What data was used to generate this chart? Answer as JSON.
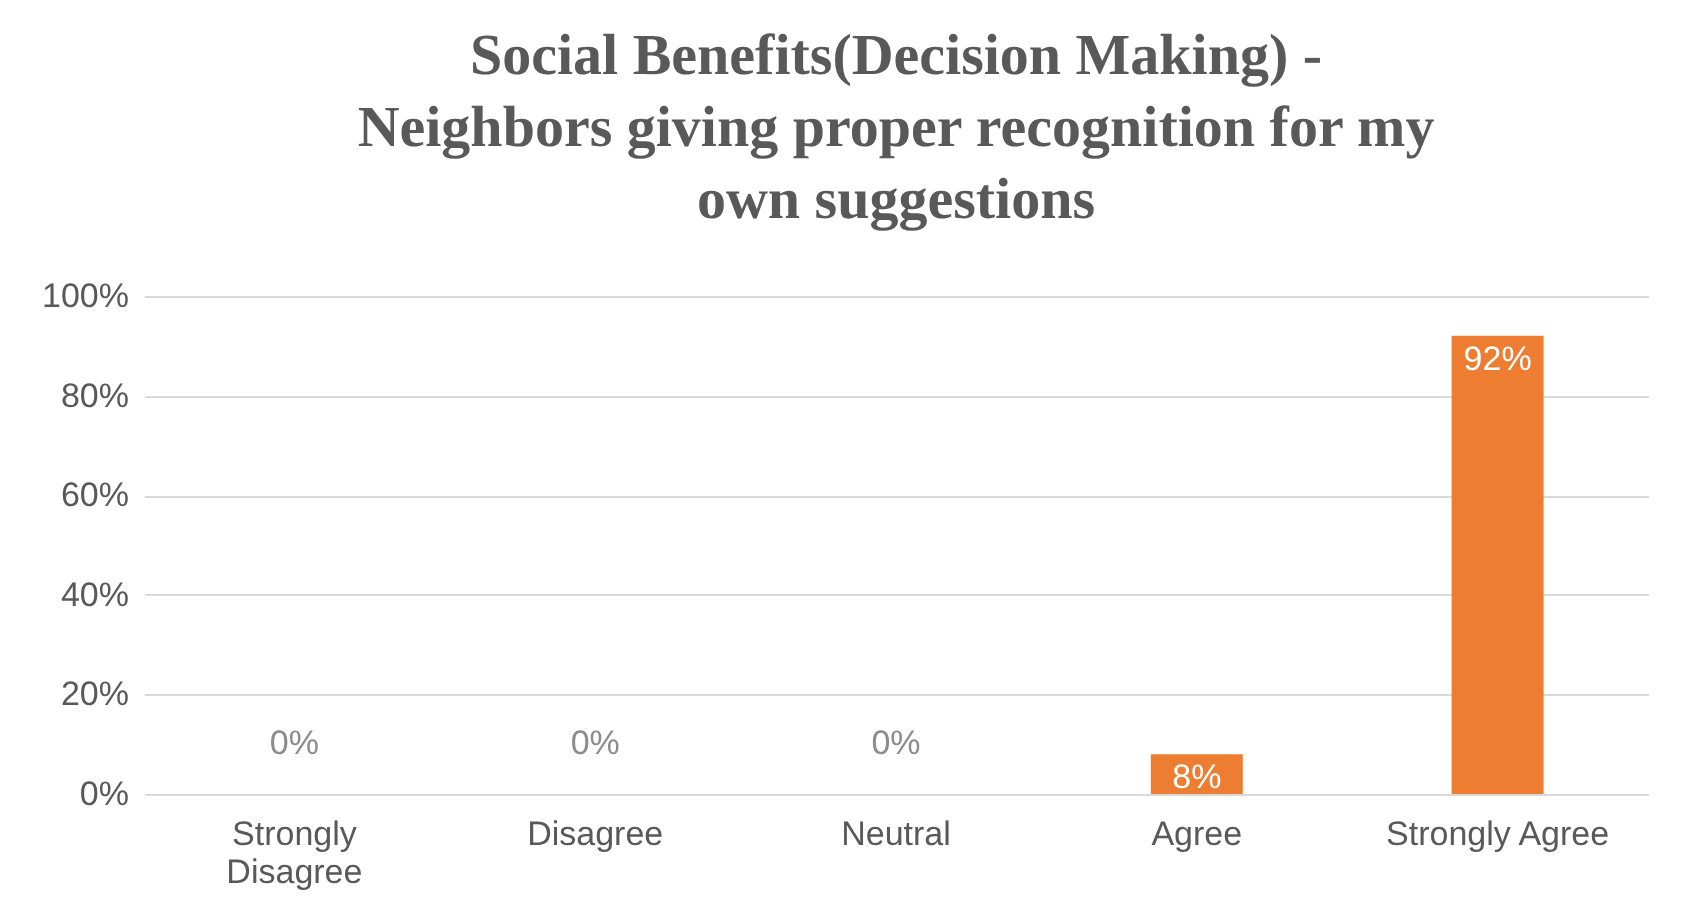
{
  "chart_data": {
    "type": "bar",
    "title": "Social Benefits(Decision Making) - Neighbors giving proper recognition for my own suggestions",
    "categories": [
      "Strongly Disagree",
      "Disagree",
      "Neutral",
      "Agree",
      "Strongly Agree"
    ],
    "values": [
      0,
      0,
      0,
      8,
      92
    ],
    "value_labels": [
      "0%",
      "0%",
      "0%",
      "8%",
      "92%"
    ],
    "color": "#ed7d31",
    "ylim": [
      0,
      100
    ],
    "yticks": [
      {
        "value": 0,
        "label": "0%"
      },
      {
        "value": 20,
        "label": "20%"
      },
      {
        "value": 40,
        "label": "40%"
      },
      {
        "value": 60,
        "label": "60%"
      },
      {
        "value": 80,
        "label": "80%"
      },
      {
        "value": 100,
        "label": "100%"
      }
    ],
    "grid": "y"
  }
}
